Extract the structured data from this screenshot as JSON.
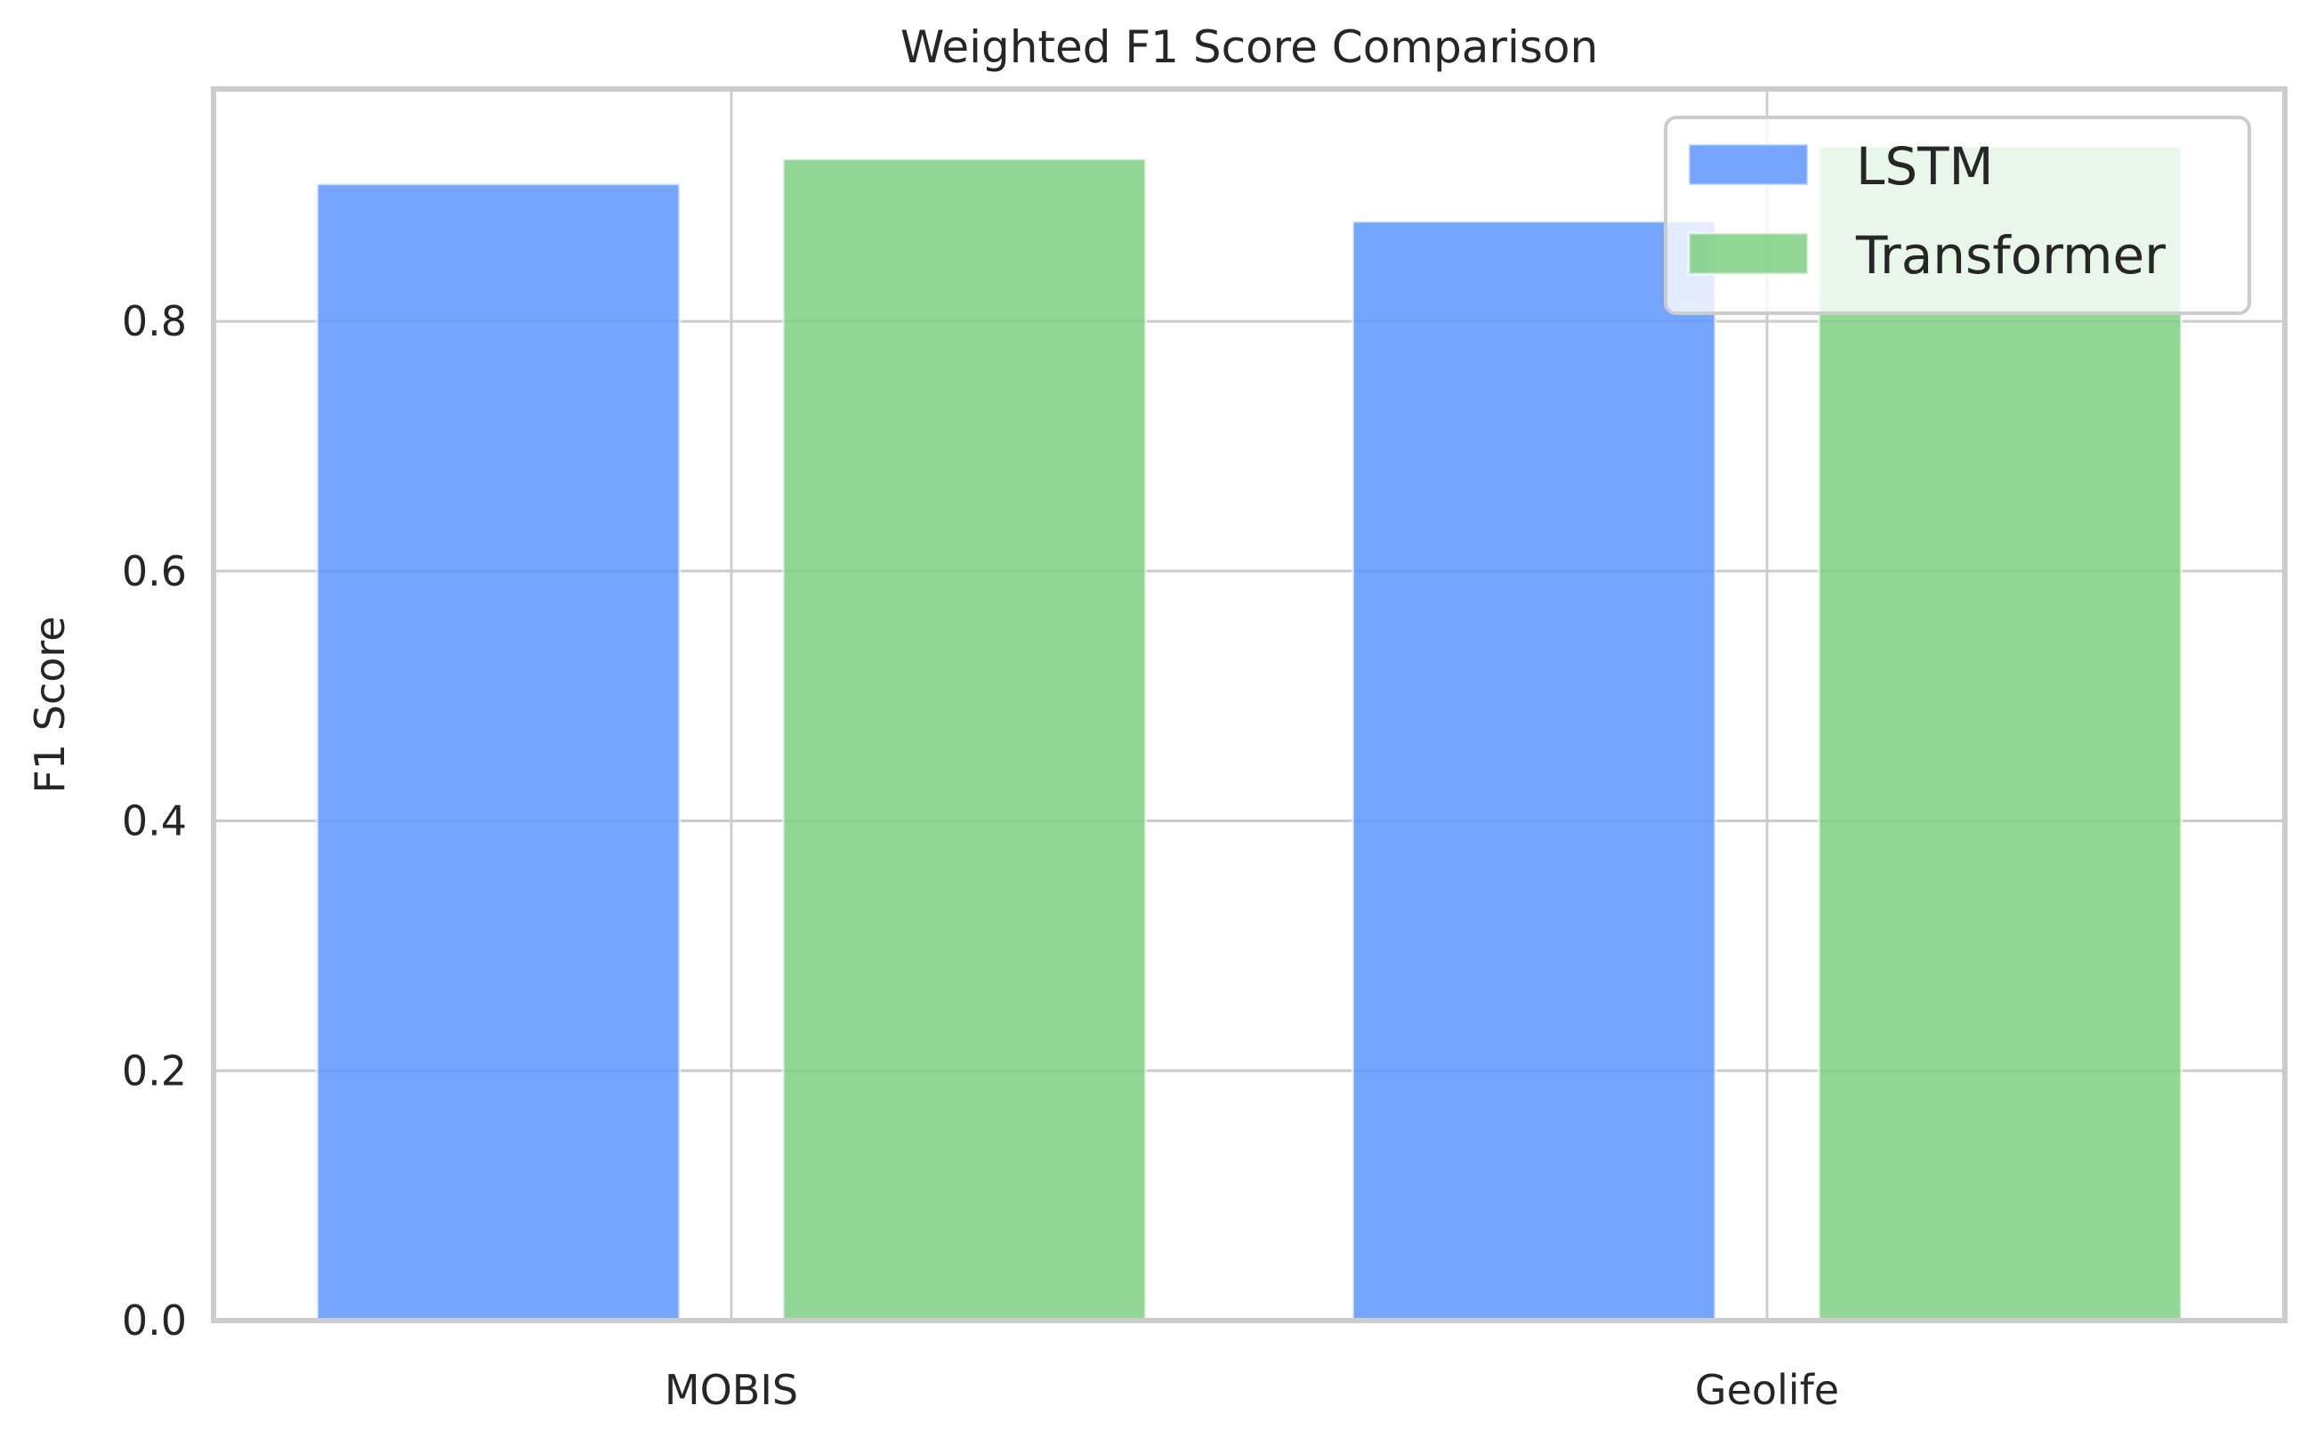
{
  "chart_data": {
    "type": "bar",
    "title": "Weighted F1 Score Comparison",
    "xlabel": "",
    "ylabel": "F1 Score",
    "categories": [
      "MOBIS",
      "Geolife"
    ],
    "series": [
      {
        "name": "LSTM",
        "values": [
          0.91,
          0.88
        ],
        "color": "#5b96fb"
      },
      {
        "name": "Transformer",
        "values": [
          0.93,
          0.94
        ],
        "color": "#7fcf82"
      }
    ],
    "ylim": [
      0,
      0.986
    ],
    "yticks": [
      0.0,
      0.2,
      0.4,
      0.6,
      0.8
    ],
    "ytick_labels": [
      "0.0",
      "0.2",
      "0.4",
      "0.6",
      "0.8"
    ],
    "grid": true,
    "legend_position": "top-right"
  }
}
